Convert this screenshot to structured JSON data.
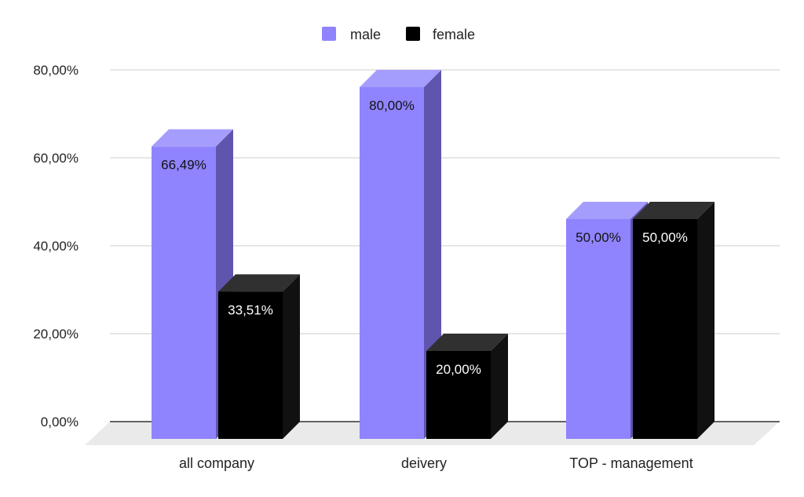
{
  "chart_data": {
    "type": "bar",
    "title": "",
    "xlabel": "",
    "ylabel": "",
    "categories": [
      "all company",
      "deivery",
      "TOP - management"
    ],
    "series": [
      {
        "name": "male",
        "values": [
          66.49,
          80.0,
          50.0
        ],
        "labels": [
          "66,49%",
          "80,00%",
          "50,00%"
        ],
        "color": "#8f84fd"
      },
      {
        "name": "female",
        "values": [
          33.51,
          20.0,
          50.0
        ],
        "labels": [
          "33,51%",
          "20,00%",
          "50,00%"
        ],
        "color": "#000000"
      }
    ],
    "ylim": [
      0,
      80
    ],
    "yticks": [
      0,
      20,
      40,
      60,
      80
    ],
    "ytick_labels": [
      "0,00%",
      "20,00%",
      "40,00%",
      "60,00%",
      "80,00%"
    ],
    "legend_position": "top-center",
    "grid": true,
    "style": "3d"
  }
}
